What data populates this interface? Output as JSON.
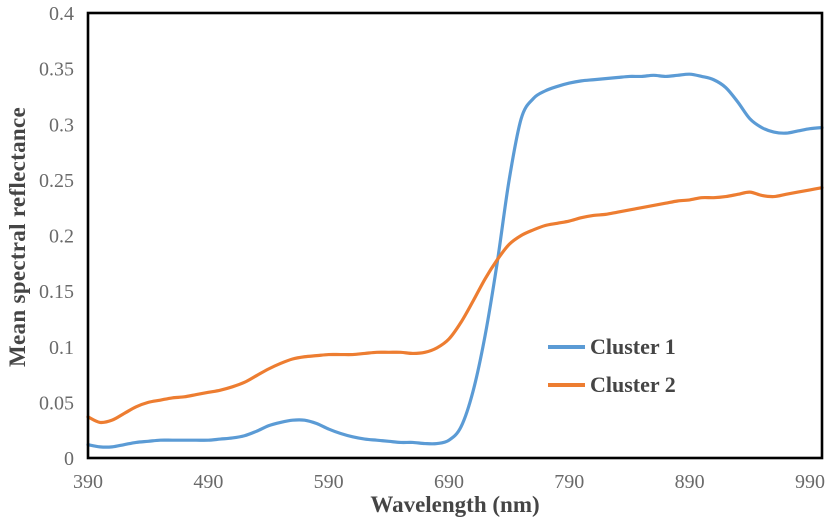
{
  "chart_data": {
    "type": "line",
    "title": "",
    "xlabel": "Wavelength (nm)",
    "ylabel": "Mean spectral reflectance",
    "xlim": [
      390,
      1000
    ],
    "ylim": [
      0,
      0.4
    ],
    "xticks": [
      390,
      490,
      590,
      690,
      790,
      890,
      990
    ],
    "yticks": [
      0,
      0.05,
      0.1,
      0.15,
      0.2,
      0.25,
      0.3,
      0.35,
      0.4
    ],
    "ytick_labels": [
      "0",
      "0.05",
      "0.1",
      "0.15",
      "0.2",
      "0.25",
      "0.3",
      "0.35",
      "0.4"
    ],
    "grid": false,
    "legend_position": "inside-right",
    "axis_color": "#000000",
    "tick_label_color": "#6a6a6a",
    "title_color": "#454545",
    "x": [
      390,
      400,
      410,
      420,
      430,
      440,
      450,
      460,
      470,
      480,
      490,
      500,
      510,
      520,
      530,
      540,
      550,
      560,
      570,
      580,
      590,
      600,
      610,
      620,
      630,
      640,
      650,
      660,
      670,
      680,
      690,
      700,
      710,
      720,
      730,
      740,
      750,
      760,
      770,
      780,
      790,
      800,
      810,
      820,
      830,
      840,
      850,
      860,
      870,
      880,
      890,
      900,
      910,
      920,
      930,
      940,
      950,
      960,
      970,
      980,
      990,
      1000
    ],
    "series": [
      {
        "name": "Cluster 1",
        "color": "#5B9BD5",
        "values": [
          0.012,
          0.01,
          0.01,
          0.012,
          0.014,
          0.015,
          0.016,
          0.016,
          0.016,
          0.016,
          0.016,
          0.017,
          0.018,
          0.02,
          0.024,
          0.029,
          0.032,
          0.034,
          0.034,
          0.031,
          0.026,
          0.022,
          0.019,
          0.017,
          0.016,
          0.015,
          0.014,
          0.014,
          0.013,
          0.013,
          0.016,
          0.028,
          0.06,
          0.11,
          0.175,
          0.25,
          0.305,
          0.323,
          0.33,
          0.334,
          0.337,
          0.339,
          0.34,
          0.341,
          0.342,
          0.343,
          0.343,
          0.344,
          0.343,
          0.344,
          0.345,
          0.343,
          0.34,
          0.333,
          0.32,
          0.305,
          0.297,
          0.293,
          0.292,
          0.294,
          0.296,
          0.297
        ]
      },
      {
        "name": "Cluster 2",
        "color": "#ED7D31",
        "values": [
          0.037,
          0.032,
          0.034,
          0.04,
          0.046,
          0.05,
          0.052,
          0.054,
          0.055,
          0.057,
          0.059,
          0.061,
          0.064,
          0.068,
          0.074,
          0.08,
          0.085,
          0.089,
          0.091,
          0.092,
          0.093,
          0.093,
          0.093,
          0.094,
          0.095,
          0.095,
          0.095,
          0.094,
          0.095,
          0.099,
          0.107,
          0.122,
          0.141,
          0.161,
          0.178,
          0.192,
          0.2,
          0.205,
          0.209,
          0.211,
          0.213,
          0.216,
          0.218,
          0.219,
          0.221,
          0.223,
          0.225,
          0.227,
          0.229,
          0.231,
          0.232,
          0.234,
          0.234,
          0.235,
          0.237,
          0.239,
          0.236,
          0.235,
          0.237,
          0.239,
          0.241,
          0.243
        ]
      }
    ]
  }
}
